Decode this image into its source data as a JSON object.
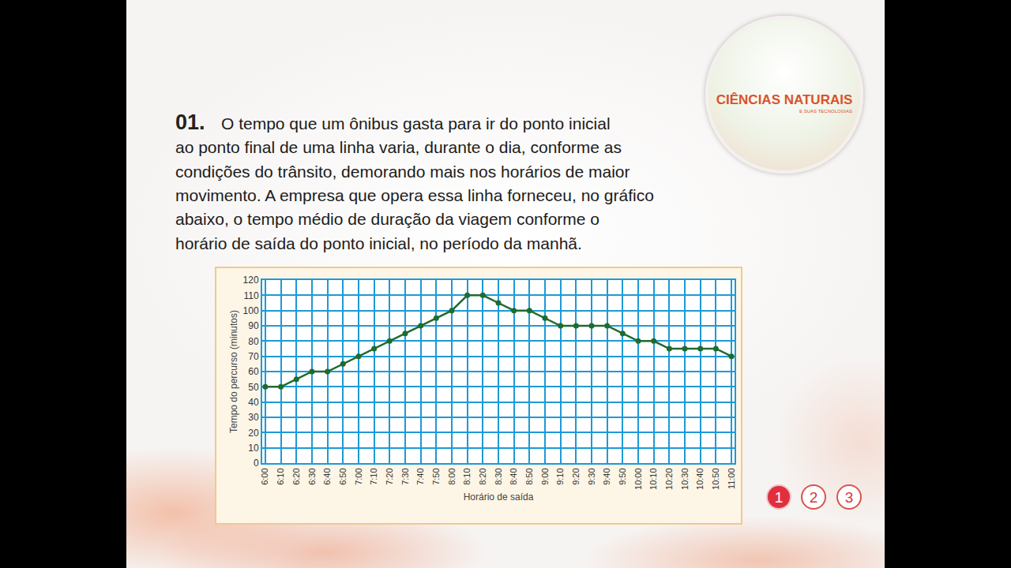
{
  "question": {
    "number": "01.",
    "lines": [
      "O tempo que um ônibus gasta para ir do ponto inicial",
      "ao ponto final de uma linha varia, durante o dia, conforme as",
      "condições do trânsito, demorando mais nos horários de maior",
      "movimento. A empresa que opera essa linha forneceu, no gráfico",
      "abaixo, o tempo médio de duração da viagem conforme o",
      "horário de saída do ponto inicial, no período da manhã."
    ]
  },
  "logo": {
    "title": "CIÊNCIAS NATURAIS",
    "subtitle": "E SUAS TECNOLOGIAS"
  },
  "pages": {
    "items": [
      "1",
      "2",
      "3"
    ],
    "current": "1"
  },
  "chart_data": {
    "type": "line",
    "x_label": "Horário de saída",
    "y_label": "Tempo do percurso (minutos)",
    "categories": [
      "6:00",
      "6:10",
      "6:20",
      "6:30",
      "6:40",
      "6:50",
      "7:00",
      "7:10",
      "7:20",
      "7:30",
      "7:40",
      "7:50",
      "8:00",
      "8:10",
      "8:20",
      "8:30",
      "8:40",
      "8:50",
      "9:00",
      "9:10",
      "9:20",
      "9:30",
      "9:40",
      "9:50",
      "10:00",
      "10:10",
      "10:20",
      "10:30",
      "10:40",
      "10:50",
      "11:00"
    ],
    "values": [
      50,
      50,
      55,
      60,
      60,
      65,
      70,
      75,
      80,
      85,
      90,
      95,
      100,
      110,
      110,
      105,
      100,
      100,
      95,
      90,
      90,
      90,
      90,
      85,
      80,
      80,
      75,
      75,
      75,
      75,
      70
    ],
    "color": "#1f6b30",
    "marker": "circle",
    "line_style": "solid",
    "ylim": [
      0,
      120
    ],
    "yticks": [
      0,
      10,
      20,
      30,
      40,
      50,
      60,
      70,
      80,
      90,
      100,
      110,
      120
    ],
    "grid": true
  }
}
